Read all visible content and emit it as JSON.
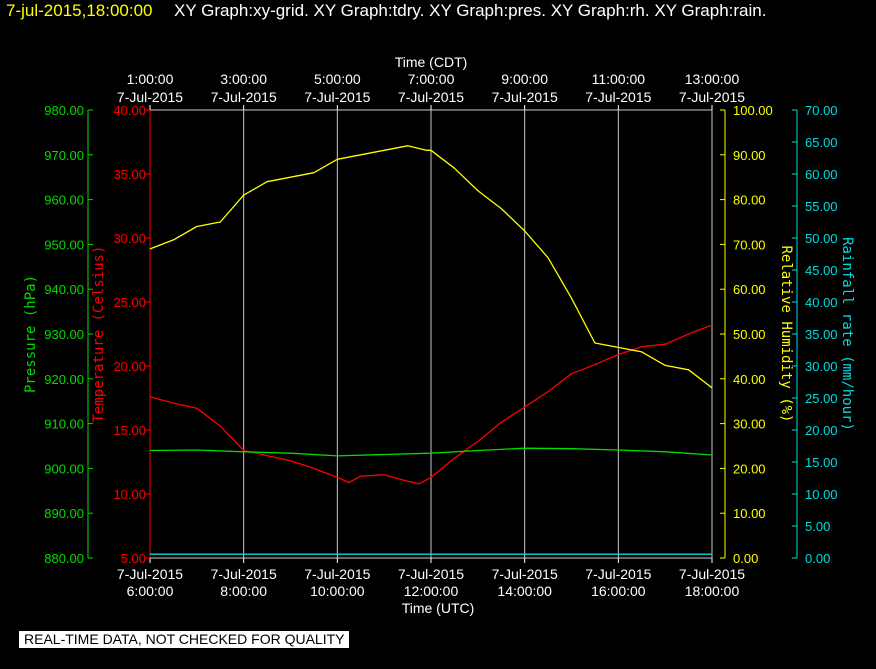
{
  "header": {
    "time": "7-jul-2015,18:00:00",
    "graphs": "XY Graph:xy-grid.  XY Graph:tdry.  XY Graph:pres.  XY Graph:rh.  XY Graph:rain."
  },
  "footer": {
    "quality_note": "REAL-TIME DATA, NOT CHECKED FOR QUALITY"
  },
  "colors": {
    "background": "#000000",
    "temperature": "#ff0000",
    "pressure": "#00dd00",
    "humidity": "#ffff00",
    "rain": "#00dddd",
    "grid": "#c8c8c8",
    "text": "#ffffff"
  },
  "chart_data": {
    "type": "line",
    "grid": true,
    "x_bottom": {
      "label": "Time (UTC)",
      "ticks": [
        {
          "date": "7-Jul-2015",
          "time": "6:00:00"
        },
        {
          "date": "7-Jul-2015",
          "time": "8:00:00"
        },
        {
          "date": "7-Jul-2015",
          "time": "10:00:00"
        },
        {
          "date": "7-Jul-2015",
          "time": "12:00:00"
        },
        {
          "date": "7-Jul-2015",
          "time": "14:00:00"
        },
        {
          "date": "7-Jul-2015",
          "time": "16:00:00"
        },
        {
          "date": "7-Jul-2015",
          "time": "18:00:00"
        }
      ]
    },
    "x_top": {
      "label": "Time (CDT)",
      "ticks": [
        {
          "time": "1:00:00",
          "date": "7-Jul-2015"
        },
        {
          "time": "3:00:00",
          "date": "7-Jul-2015"
        },
        {
          "time": "5:00:00",
          "date": "7-Jul-2015"
        },
        {
          "time": "7:00:00",
          "date": "7-Jul-2015"
        },
        {
          "time": "9:00:00",
          "date": "7-Jul-2015"
        },
        {
          "time": "11:00:00",
          "date": "7-Jul-2015"
        },
        {
          "time": "13:00:00",
          "date": "7-Jul-2015"
        }
      ]
    },
    "axes": {
      "pressure": {
        "label": "Pressure (hPa)",
        "range": [
          880,
          980
        ],
        "ticks": [
          "880.00",
          "890.00",
          "900.00",
          "910.00",
          "920.00",
          "930.00",
          "940.00",
          "950.00",
          "960.00",
          "970.00",
          "980.00"
        ]
      },
      "temperature": {
        "label": "Temperature (Celsius)",
        "range": [
          5,
          40
        ],
        "ticks": [
          "5.00",
          "10.00",
          "15.00",
          "20.00",
          "25.00",
          "30.00",
          "35.00",
          "40.00"
        ]
      },
      "humidity": {
        "label": "Relative Humidity (%)",
        "range": [
          0,
          100
        ],
        "ticks": [
          "0.00",
          "10.00",
          "20.00",
          "30.00",
          "40.00",
          "50.00",
          "60.00",
          "70.00",
          "80.00",
          "90.00",
          "100.00"
        ]
      },
      "rain": {
        "label": "Rainfall rate (mm/hour)",
        "range": [
          0,
          70
        ],
        "ticks": [
          "0.00",
          "5.00",
          "10.00",
          "15.00",
          "20.00",
          "25.00",
          "30.00",
          "35.00",
          "40.00",
          "45.00",
          "50.00",
          "55.00",
          "60.00",
          "65.00",
          "70.00"
        ]
      }
    },
    "series": [
      {
        "name": "tdry",
        "axis": "temperature",
        "x_hours_utc": [
          6,
          6.5,
          7,
          7.5,
          8,
          8.5,
          9,
          9.5,
          10,
          10.25,
          10.5,
          11,
          11.5,
          11.75,
          12,
          12.5,
          13,
          13.5,
          14,
          14.5,
          15,
          15.5,
          16,
          16.5,
          17,
          17.5,
          18
        ],
        "y": [
          17.6,
          17.1,
          16.7,
          15.3,
          13.4,
          13.0,
          12.6,
          12.0,
          11.3,
          10.9,
          11.4,
          11.5,
          11.0,
          10.8,
          11.3,
          12.8,
          14.1,
          15.6,
          16.8,
          18.0,
          19.4,
          20.1,
          20.9,
          21.5,
          21.7,
          22.5,
          23.2
        ]
      },
      {
        "name": "pres",
        "axis": "pressure",
        "x_hours_utc": [
          6,
          7,
          8,
          9,
          10,
          11,
          12,
          13,
          14,
          15,
          16,
          17,
          18
        ],
        "y": [
          904.0,
          904.1,
          903.7,
          903.4,
          902.8,
          903.1,
          903.4,
          904.0,
          904.5,
          904.4,
          904.1,
          903.7,
          903.0
        ]
      },
      {
        "name": "rh",
        "axis": "humidity",
        "x_hours_utc": [
          6,
          6.5,
          7,
          7.5,
          8,
          8.5,
          9,
          9.5,
          10,
          10.5,
          11,
          11.5,
          11.9,
          12,
          12.5,
          13,
          13.5,
          14,
          14.5,
          15,
          15.5,
          16,
          16.5,
          17,
          17.5,
          18
        ],
        "y": [
          69,
          71,
          74,
          75,
          81,
          84,
          85,
          86,
          89,
          90,
          91,
          92,
          91,
          91,
          87,
          82,
          78,
          73,
          67,
          58,
          48,
          47,
          46,
          43,
          42,
          38
        ]
      },
      {
        "name": "rain",
        "axis": "rain",
        "x_hours_utc": [
          6,
          18
        ],
        "y": [
          0.6,
          0.6
        ]
      }
    ]
  }
}
